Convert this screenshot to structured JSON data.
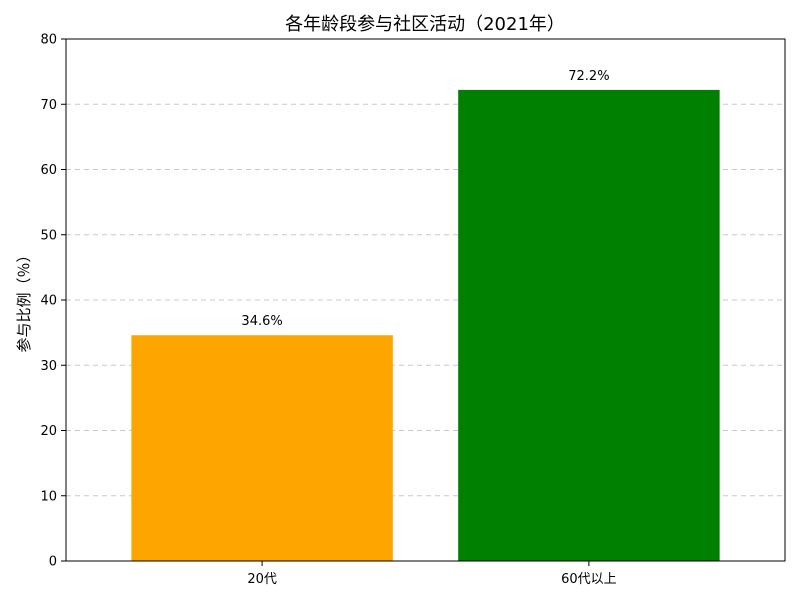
{
  "chart_data": {
    "type": "bar",
    "title": "各年龄段参与社区活动（2021年）",
    "xlabel": "",
    "ylabel": "参与比例（％）",
    "categories": [
      "20代",
      "60代以上"
    ],
    "values": [
      34.6,
      72.2
    ],
    "data_labels": [
      "34.6%",
      "72.2%"
    ],
    "colors": [
      "#ffa500",
      "#008000"
    ],
    "ylim": [
      0,
      80
    ],
    "yticks": [
      0,
      10,
      20,
      30,
      40,
      50,
      60,
      70,
      80
    ],
    "grid": {
      "axis": "y",
      "style": "dashed"
    },
    "legend": "none"
  }
}
